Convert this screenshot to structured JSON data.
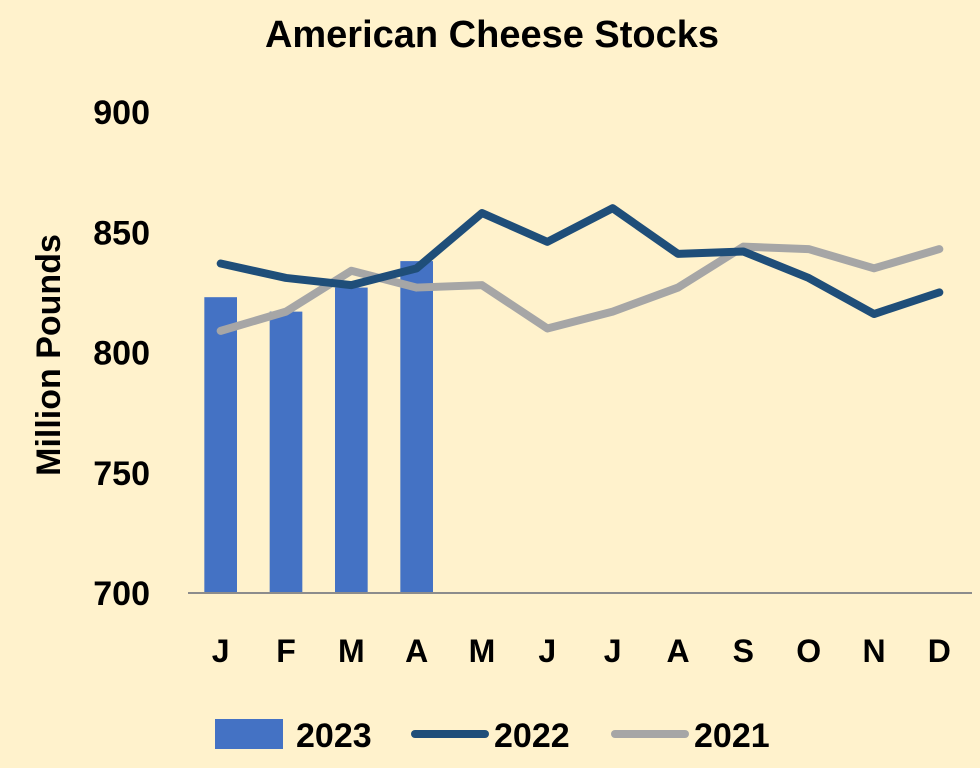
{
  "chart_data": {
    "type": "bar+line",
    "title": "American Cheese Stocks",
    "ylabel": "Million Pounds",
    "xlabel": "",
    "ylim": [
      700,
      900
    ],
    "yticks": [
      "700",
      "750",
      "800",
      "850",
      "900"
    ],
    "categories": [
      "J",
      "F",
      "M",
      "A",
      "M",
      "J",
      "J",
      "A",
      "S",
      "O",
      "N",
      "D"
    ],
    "grid": false,
    "legend_position": "bottom",
    "series": [
      {
        "name": "2023",
        "type": "bar",
        "color": "#4472c4",
        "values": [
          823,
          817,
          827,
          838,
          null,
          null,
          null,
          null,
          null,
          null,
          null,
          null
        ]
      },
      {
        "name": "2022",
        "type": "line",
        "color": "#1f4e79",
        "values": [
          837,
          831,
          828,
          835,
          858,
          846,
          860,
          841,
          842,
          831,
          816,
          825
        ]
      },
      {
        "name": "2021",
        "type": "line",
        "color": "#a6a6a6",
        "values": [
          809,
          817,
          834,
          827,
          828,
          810,
          817,
          827,
          844,
          843,
          835,
          843
        ]
      }
    ]
  }
}
